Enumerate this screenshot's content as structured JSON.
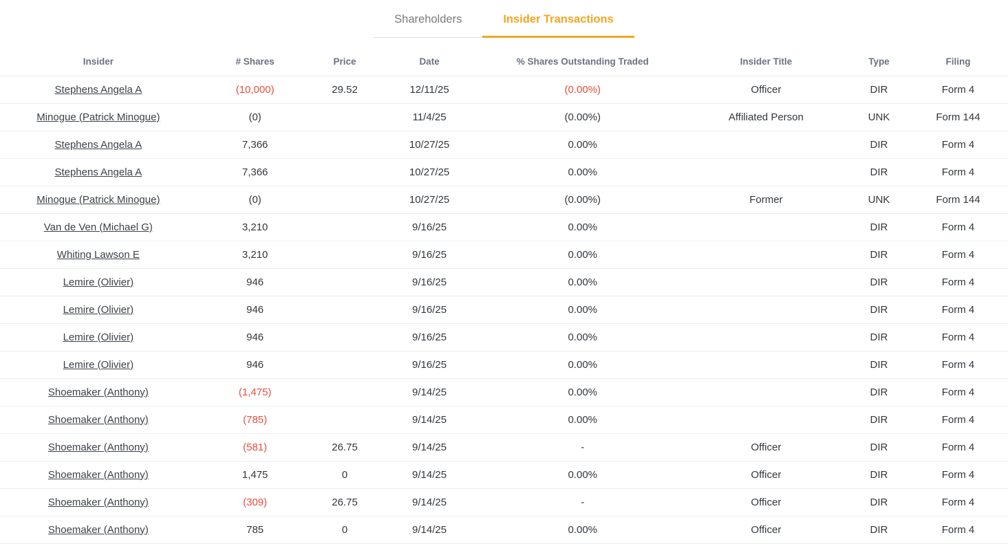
{
  "tabs": [
    {
      "label": "Shareholders",
      "active": false
    },
    {
      "label": "Insider Transactions",
      "active": true
    }
  ],
  "colors": {
    "accent_orange": "#F5A623",
    "negative_red": "#E94D3C"
  },
  "table": {
    "columns": [
      "Insider",
      "# Shares",
      "Price",
      "Date",
      "% Shares Outstanding Traded",
      "Insider Title",
      "Type",
      "Filing"
    ],
    "rows": [
      {
        "insider": "Stephens Angela A",
        "shares": "(10,000)",
        "shares_red": true,
        "price": "29.52",
        "date": "12/11/25",
        "pct": "(0.00%)",
        "pct_red": true,
        "title": "Officer",
        "type": "DIR",
        "filing": "Form 4"
      },
      {
        "insider": "Minogue (Patrick Minogue)",
        "shares": "(0)",
        "shares_red": false,
        "price": "",
        "date": "11/4/25",
        "pct": "(0.00%)",
        "pct_red": false,
        "title": "Affiliated Person",
        "type": "UNK",
        "filing": "Form 144"
      },
      {
        "insider": "Stephens Angela A",
        "shares": "7,366",
        "shares_red": false,
        "price": "",
        "date": "10/27/25",
        "pct": "0.00%",
        "pct_red": false,
        "title": "",
        "type": "DIR",
        "filing": "Form 4"
      },
      {
        "insider": "Stephens Angela A",
        "shares": "7,366",
        "shares_red": false,
        "price": "",
        "date": "10/27/25",
        "pct": "0.00%",
        "pct_red": false,
        "title": "",
        "type": "DIR",
        "filing": "Form 4"
      },
      {
        "insider": "Minogue (Patrick Minogue)",
        "shares": "(0)",
        "shares_red": false,
        "price": "",
        "date": "10/27/25",
        "pct": "(0.00%)",
        "pct_red": false,
        "title": "Former",
        "type": "UNK",
        "filing": "Form 144"
      },
      {
        "insider": "Van de Ven (Michael G)",
        "shares": "3,210",
        "shares_red": false,
        "price": "",
        "date": "9/16/25",
        "pct": "0.00%",
        "pct_red": false,
        "title": "",
        "type": "DIR",
        "filing": "Form 4"
      },
      {
        "insider": "Whiting Lawson E",
        "shares": "3,210",
        "shares_red": false,
        "price": "",
        "date": "9/16/25",
        "pct": "0.00%",
        "pct_red": false,
        "title": "",
        "type": "DIR",
        "filing": "Form 4"
      },
      {
        "insider": "Lemire (Olivier)",
        "shares": "946",
        "shares_red": false,
        "price": "",
        "date": "9/16/25",
        "pct": "0.00%",
        "pct_red": false,
        "title": "",
        "type": "DIR",
        "filing": "Form 4"
      },
      {
        "insider": "Lemire (Olivier)",
        "shares": "946",
        "shares_red": false,
        "price": "",
        "date": "9/16/25",
        "pct": "0.00%",
        "pct_red": false,
        "title": "",
        "type": "DIR",
        "filing": "Form 4"
      },
      {
        "insider": "Lemire (Olivier)",
        "shares": "946",
        "shares_red": false,
        "price": "",
        "date": "9/16/25",
        "pct": "0.00%",
        "pct_red": false,
        "title": "",
        "type": "DIR",
        "filing": "Form 4"
      },
      {
        "insider": "Lemire (Olivier)",
        "shares": "946",
        "shares_red": false,
        "price": "",
        "date": "9/16/25",
        "pct": "0.00%",
        "pct_red": false,
        "title": "",
        "type": "DIR",
        "filing": "Form 4"
      },
      {
        "insider": "Shoemaker (Anthony)",
        "shares": "(1,475)",
        "shares_red": true,
        "price": "",
        "date": "9/14/25",
        "pct": "0.00%",
        "pct_red": false,
        "title": "",
        "type": "DIR",
        "filing": "Form 4"
      },
      {
        "insider": "Shoemaker (Anthony)",
        "shares": "(785)",
        "shares_red": true,
        "price": "",
        "date": "9/14/25",
        "pct": "0.00%",
        "pct_red": false,
        "title": "",
        "type": "DIR",
        "filing": "Form 4"
      },
      {
        "insider": "Shoemaker (Anthony)",
        "shares": "(581)",
        "shares_red": true,
        "price": "26.75",
        "date": "9/14/25",
        "pct": "-",
        "pct_red": false,
        "title": "Officer",
        "type": "DIR",
        "filing": "Form 4"
      },
      {
        "insider": "Shoemaker (Anthony)",
        "shares": "1,475",
        "shares_red": false,
        "price": "0",
        "date": "9/14/25",
        "pct": "0.00%",
        "pct_red": false,
        "title": "Officer",
        "type": "DIR",
        "filing": "Form 4"
      },
      {
        "insider": "Shoemaker (Anthony)",
        "shares": "(309)",
        "shares_red": true,
        "price": "26.75",
        "date": "9/14/25",
        "pct": "-",
        "pct_red": false,
        "title": "Officer",
        "type": "DIR",
        "filing": "Form 4"
      },
      {
        "insider": "Shoemaker (Anthony)",
        "shares": "785",
        "shares_red": false,
        "price": "0",
        "date": "9/14/25",
        "pct": "0.00%",
        "pct_red": false,
        "title": "Officer",
        "type": "DIR",
        "filing": "Form 4"
      }
    ]
  }
}
